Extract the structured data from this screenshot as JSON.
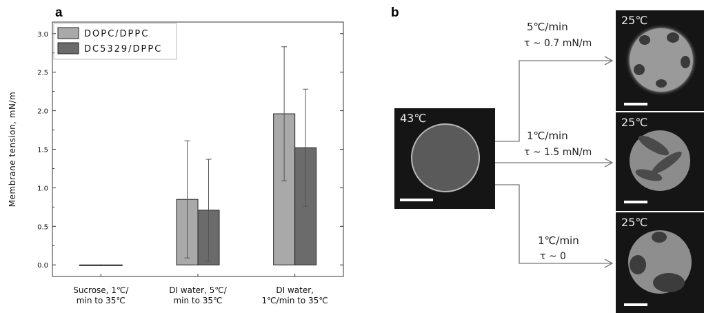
{
  "panel_a_label": "a",
  "panel_b_label": "b",
  "chart_data": {
    "type": "bar",
    "title": "",
    "ylabel": "Membrane tension, mN/m",
    "xlabel": "",
    "categories": [
      [
        "Sucrose, 1℃/",
        "min to 35℃"
      ],
      [
        "DI water, 5℃/",
        "min to 35℃"
      ],
      [
        "DI water,",
        "1℃/min to 35℃"
      ]
    ],
    "series": [
      {
        "name": "DOPC/DPPC",
        "color": "#a9a9a9",
        "values": [
          0.0,
          0.85,
          1.96
        ],
        "errors": [
          0.0,
          0.76,
          0.87
        ]
      },
      {
        "name": "DC5329/DPPC",
        "color": "#6b6b6b",
        "values": [
          0.0,
          0.71,
          1.52
        ],
        "errors": [
          0.0,
          0.66,
          0.76
        ]
      }
    ],
    "ylim": [
      -0.15,
      3.15
    ],
    "yticks": [
      "0.0",
      "0.5",
      "1.0",
      "1.5",
      "2.0",
      "2.5",
      "3.0"
    ],
    "legend_position": "top-left",
    "grid": false
  },
  "panel_b": {
    "initial": {
      "temperature": "43℃"
    },
    "branches": [
      {
        "rate": "5℃/min",
        "tension": "τ ~ 0.7 mN/m",
        "temperature": "25℃"
      },
      {
        "rate": "1℃/min",
        "tension": "τ ~ 1.5 mN/m",
        "temperature": "25℃"
      },
      {
        "rate": "1℃/min",
        "tension": "τ ~ 0",
        "temperature": "25℃"
      }
    ]
  }
}
